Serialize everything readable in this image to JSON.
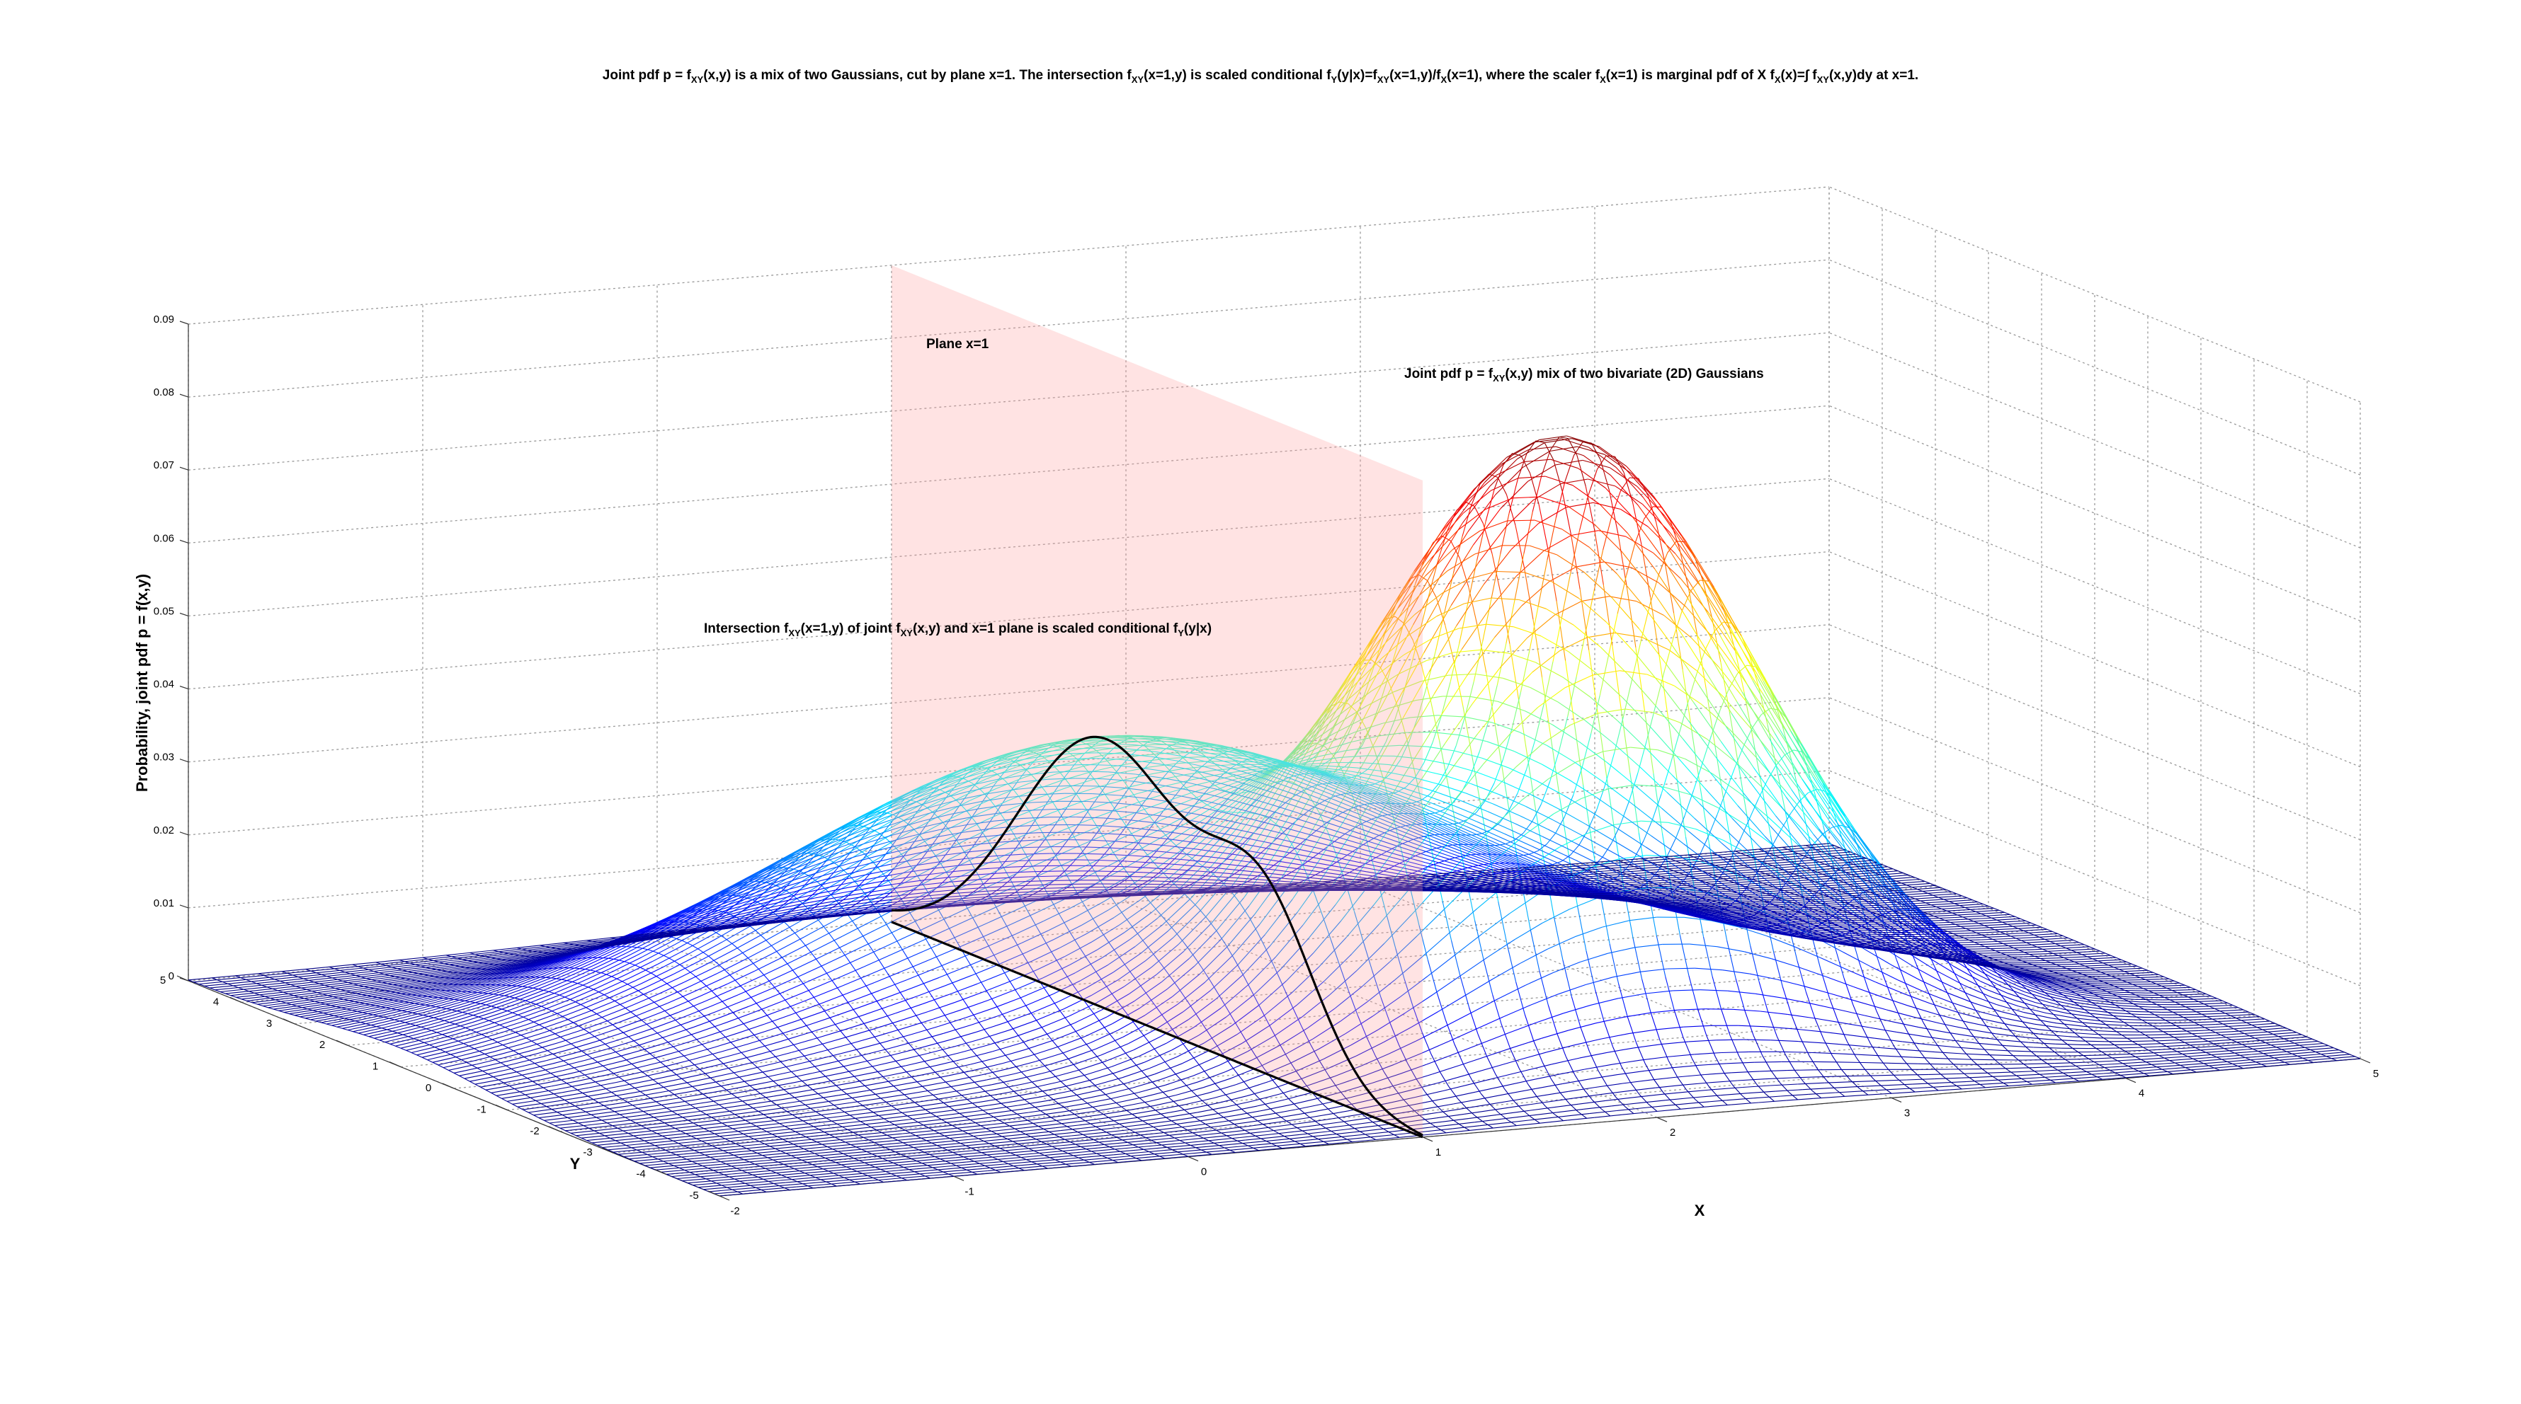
{
  "chart_data": {
    "type": "surface",
    "title": {
      "parts": [
        {
          "t": "Joint pdf p = f"
        },
        {
          "t": "XY",
          "sub": true
        },
        {
          "t": "(x,y) is a mix of two Gaussians, cut by plane x=1. The intersection f"
        },
        {
          "t": "XY",
          "sub": true
        },
        {
          "t": "(x=1,y) is scaled conditional f"
        },
        {
          "t": "Y",
          "sub": true
        },
        {
          "t": "(y|x)=f"
        },
        {
          "t": "XY",
          "sub": true
        },
        {
          "t": "(x=1,y)/f"
        },
        {
          "t": "X",
          "sub": true
        },
        {
          "t": "(x=1), where the scaler f"
        },
        {
          "t": "X",
          "sub": true
        },
        {
          "t": "(x=1) is marginal pdf of X f"
        },
        {
          "t": "X",
          "sub": true
        },
        {
          "t": "(x)=∫ f"
        },
        {
          "t": "XY",
          "sub": true
        },
        {
          "t": "(x,y)dy at x=1."
        }
      ]
    },
    "annotations": {
      "plane": {
        "parts": [
          {
            "t": "Plane x=1"
          }
        ]
      },
      "joint": {
        "parts": [
          {
            "t": "Joint pdf p = f"
          },
          {
            "t": "XY",
            "sub": true
          },
          {
            "t": "(x,y) mix of two bivariate (2D) Gaussians"
          }
        ]
      },
      "intersection": {
        "parts": [
          {
            "t": "Intersection f"
          },
          {
            "t": "XY",
            "sub": true
          },
          {
            "t": "(x=1,y) of joint f"
          },
          {
            "t": "XY",
            "sub": true
          },
          {
            "t": "(x,y) and x=1 plane is scaled conditional f"
          },
          {
            "t": "Y",
            "sub": true
          },
          {
            "t": "(y|x)"
          }
        ]
      }
    },
    "xlabel": "X",
    "ylabel": "Y",
    "zlabel": "Probability, joint pdf p = f(x,y)",
    "xlim": [
      -2,
      5
    ],
    "ylim": [
      -5,
      5
    ],
    "zlim": [
      0,
      0.09
    ],
    "x_ticks": [
      "-2",
      "-1",
      "0",
      "1",
      "2",
      "3",
      "4",
      "5"
    ],
    "y_ticks": [
      "-5",
      "-4",
      "-3",
      "-2",
      "-1",
      "0",
      "1",
      "2",
      "3",
      "4",
      "5"
    ],
    "z_ticks": [
      "0",
      "0.01",
      "0.02",
      "0.03",
      "0.04",
      "0.05",
      "0.06",
      "0.07",
      "0.08",
      "0.09"
    ],
    "components": [
      {
        "mu": [
          1.0,
          1.0
        ],
        "sigma": [
          1.3,
          1.6
        ],
        "weight": 0.48
      },
      {
        "mu": [
          2.3,
          -2.0
        ],
        "sigma": [
          0.8,
          1.0
        ],
        "weight": 0.4
      }
    ],
    "cut_plane_x": 1,
    "grid": true,
    "colormap": "jet",
    "plane_color": "#ff9999",
    "curve_color": "#000000"
  }
}
